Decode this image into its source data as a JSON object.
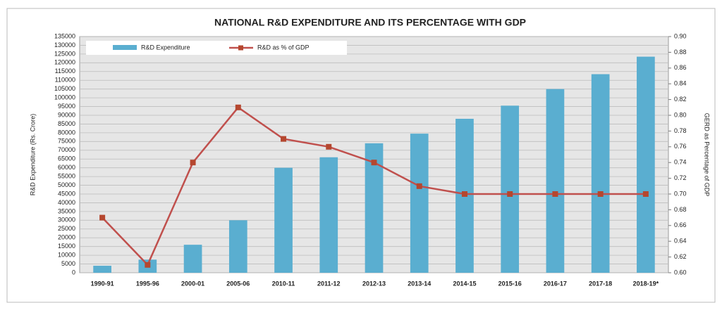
{
  "chart_data": {
    "type": "bar",
    "title": "NATIONAL R&D EXPENDITURE AND ITS PERCENTAGE WITH GDP",
    "y_label": "R&D Expenditure (Rs. Crore)",
    "y2_label": "GERD as Percentage of GDP",
    "categories": [
      "1990-91",
      "1995-96",
      "2000-01",
      "2005-06",
      "2010-11",
      "2011-12",
      "2012-13",
      "2013-14",
      "2014-15",
      "2015-16",
      "2016-17",
      "2017-18",
      "2018-19*"
    ],
    "series": [
      {
        "name": "R&D Expenditure",
        "type": "bar",
        "color": "#5aaed0",
        "values": [
          4000,
          7500,
          16000,
          30000,
          60000,
          66000,
          74000,
          79500,
          88000,
          95500,
          105000,
          113500,
          123500
        ]
      },
      {
        "name": "R&D as % of GDP",
        "type": "line",
        "axis": "y2",
        "color": "#c0504d",
        "values": [
          0.67,
          0.61,
          0.74,
          0.81,
          0.77,
          0.76,
          0.74,
          0.71,
          0.7,
          0.7,
          0.7,
          0.7,
          0.7
        ]
      }
    ],
    "ylim": [
      0,
      135000
    ],
    "yticks": [
      0,
      5000,
      10000,
      15000,
      20000,
      25000,
      30000,
      35000,
      40000,
      45000,
      50000,
      55000,
      60000,
      65000,
      70000,
      75000,
      80000,
      85000,
      90000,
      95000,
      100000,
      105000,
      110000,
      115000,
      120000,
      125000,
      130000,
      135000
    ],
    "y2lim": [
      0.6,
      0.9
    ],
    "y2ticks": [
      {
        "value": 0.6,
        "label": "0.60"
      },
      0.62,
      0.64,
      0.66,
      0.68,
      {
        "value": 0.7,
        "label": "0.70"
      },
      0.72,
      0.74,
      0.76,
      0.78,
      {
        "value": 0.8,
        "label": "0.80"
      },
      0.82,
      0.84,
      0.86,
      0.88,
      {
        "value": 0.9,
        "label": "0.90"
      }
    ],
    "grid": true,
    "legend": "top"
  }
}
